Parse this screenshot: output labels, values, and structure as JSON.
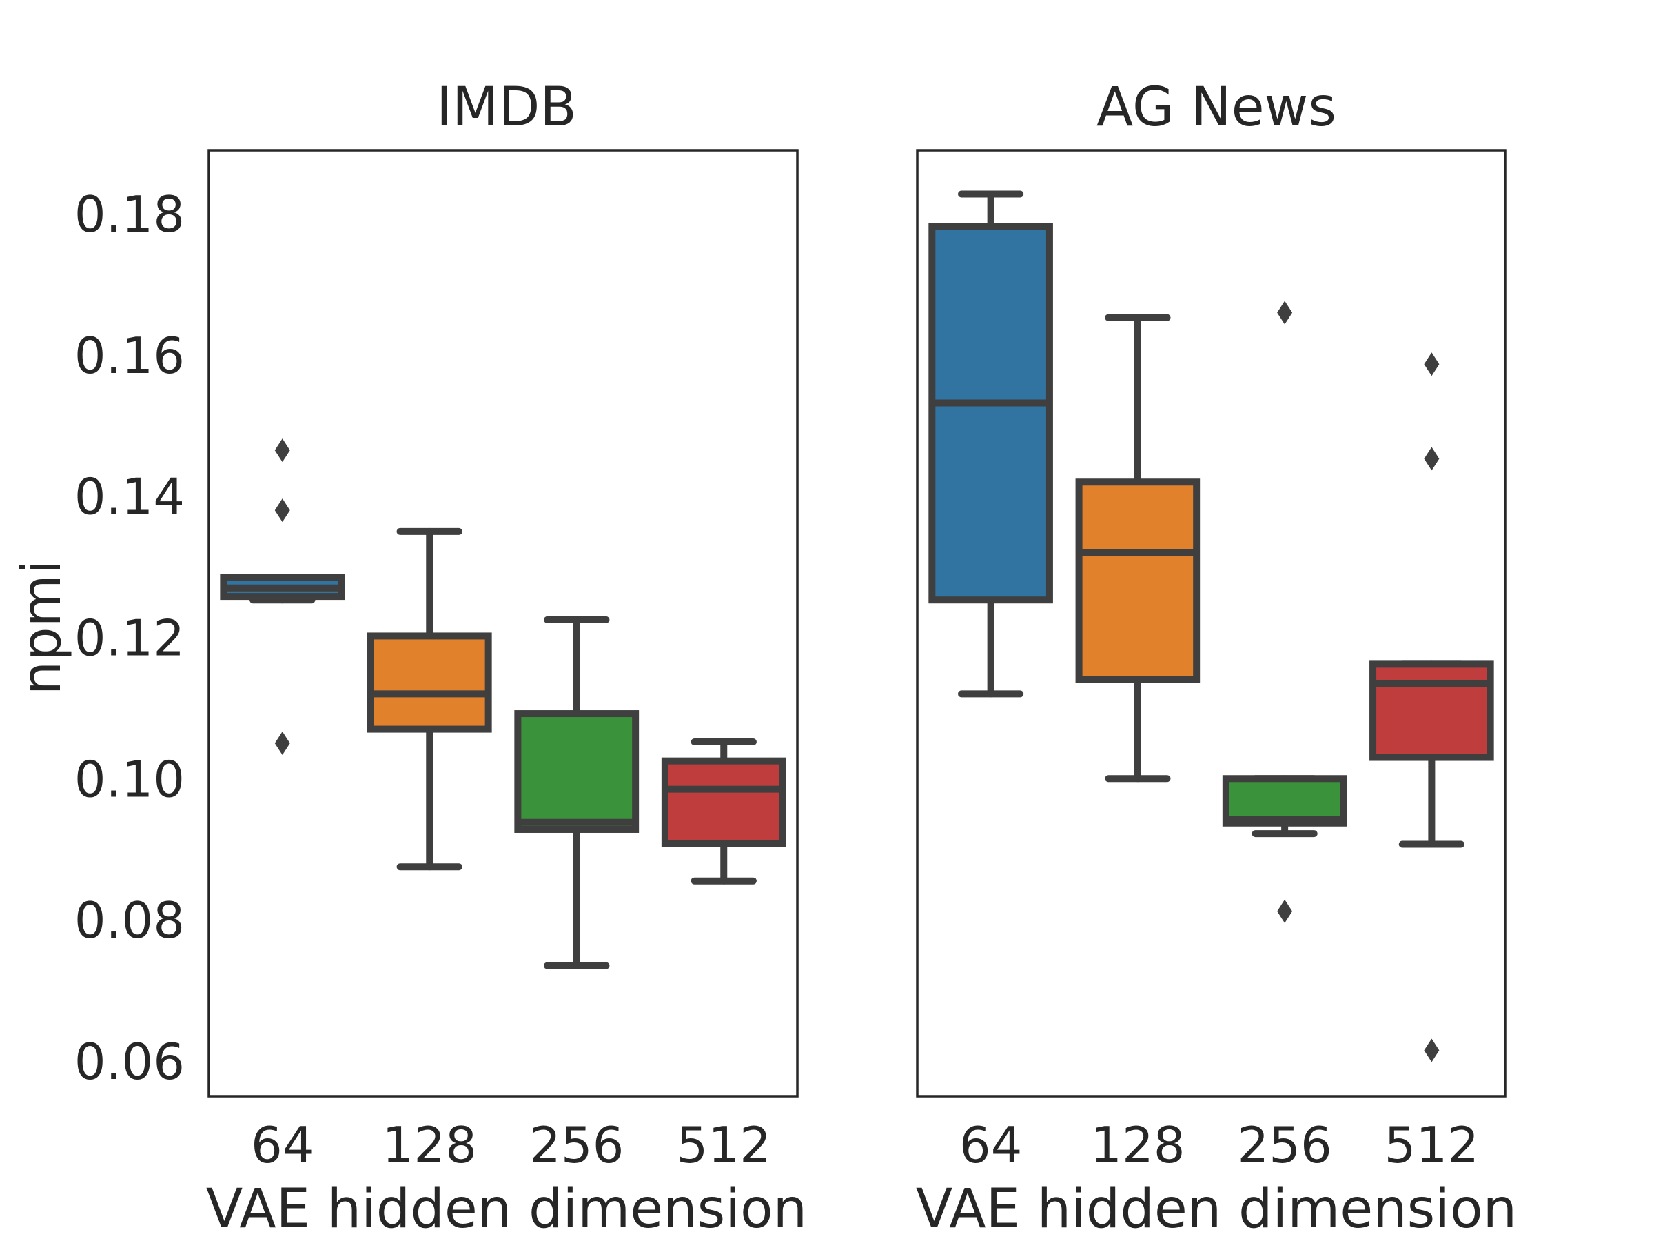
{
  "chart_data": [
    {
      "type": "box",
      "title": "IMDB",
      "xlabel": "VAE hidden dimension",
      "ylabel": "npmi",
      "ylim": [
        0.055,
        0.189
      ],
      "yticks": [
        "0.06",
        "0.08",
        "0.10",
        "0.12",
        "0.14",
        "0.16",
        "0.18"
      ],
      "categories": [
        "64",
        "128",
        "256",
        "512"
      ],
      "boxes": [
        {
          "category": "64",
          "color": "#3274a1",
          "whisker_low": 0.1253,
          "q1": 0.1258,
          "median": 0.127,
          "q3": 0.1285,
          "whisker_high": 0.1285,
          "outliers": [
            0.1465,
            0.138,
            0.105
          ]
        },
        {
          "category": "128",
          "color": "#e1812c",
          "whisker_low": 0.0875,
          "q1": 0.107,
          "median": 0.112,
          "q3": 0.1202,
          "whisker_high": 0.135,
          "outliers": []
        },
        {
          "category": "256",
          "color": "#3a923a",
          "whisker_low": 0.0735,
          "q1": 0.0928,
          "median": 0.0938,
          "q3": 0.1092,
          "whisker_high": 0.1225,
          "outliers": []
        },
        {
          "category": "512",
          "color": "#c03d3e",
          "whisker_low": 0.0855,
          "q1": 0.0908,
          "median": 0.0985,
          "q3": 0.1025,
          "whisker_high": 0.1052,
          "outliers": []
        }
      ]
    },
    {
      "type": "box",
      "title": "AG News",
      "xlabel": "VAE hidden dimension",
      "ylabel": "",
      "ylim": [
        0.055,
        0.189
      ],
      "categories": [
        "64",
        "128",
        "256",
        "512"
      ],
      "boxes": [
        {
          "category": "64",
          "color": "#3274a1",
          "whisker_low": 0.112,
          "q1": 0.1253,
          "median": 0.1532,
          "q3": 0.1782,
          "whisker_high": 0.1828,
          "outliers": []
        },
        {
          "category": "128",
          "color": "#e1812c",
          "whisker_low": 0.1,
          "q1": 0.114,
          "median": 0.132,
          "q3": 0.142,
          "whisker_high": 0.1653,
          "outliers": []
        },
        {
          "category": "256",
          "color": "#3a923a",
          "whisker_low": 0.0922,
          "q1": 0.0937,
          "median": 0.0942,
          "q3": 0.1,
          "whisker_high": 0.1,
          "outliers": [
            0.166,
            0.0812
          ]
        },
        {
          "category": "512",
          "color": "#c03d3e",
          "whisker_low": 0.0907,
          "q1": 0.103,
          "median": 0.1135,
          "q3": 0.1162,
          "whisker_high": 0.1162,
          "outliers": [
            0.1587,
            0.1453,
            0.0615
          ]
        }
      ]
    }
  ]
}
